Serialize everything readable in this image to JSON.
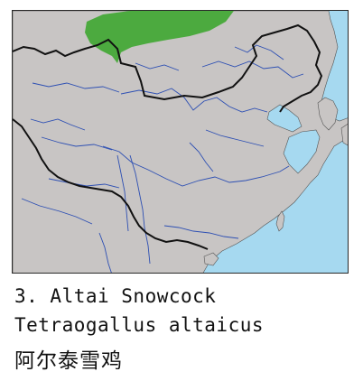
{
  "caption": {
    "number_name": "3. Altai Snowcock",
    "scientific_name": "Tetraogallus altaicus",
    "chinese_name": "阿尔泰雪鸡"
  },
  "colors": {
    "water": "#a6d9f0",
    "land": "#c8c5c4",
    "range": "#4caa3f",
    "rivers": "#2d4fb3",
    "border": "#111111"
  },
  "map": {
    "range_icon": "species-range-patch",
    "legend_icon": "distribution-map"
  }
}
